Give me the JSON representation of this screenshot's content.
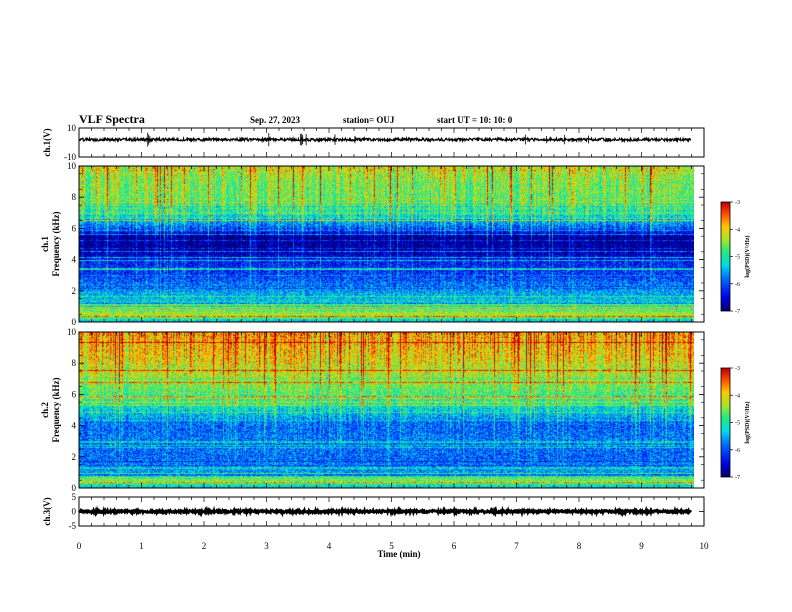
{
  "header": {
    "title": "VLF Spectra",
    "date": "Sep. 27, 2023",
    "station": "station= OUJ",
    "start": "start  UT =   10: 10: 0"
  },
  "chart_data": [
    {
      "type": "line",
      "name": "ch1-waveform",
      "ylabel": "ch.1(V)",
      "ylim": [
        -10,
        10
      ],
      "yticks": [
        "10",
        "-10"
      ],
      "xlim": [
        0,
        10
      ],
      "baseline": 2,
      "amplitude": 1,
      "line_color": "#000000"
    },
    {
      "type": "heatmap",
      "name": "ch1-spectrogram",
      "ylabel_top": "ch.1",
      "ylabel": "Frequency (kHz)",
      "ylim": [
        0,
        10
      ],
      "yticks": [
        "0",
        "2",
        "4",
        "6",
        "8",
        "10"
      ],
      "xlim": [
        0,
        9.85
      ],
      "colorbar": {
        "label": "log(PSD)(V²/Hz)",
        "range": [
          -7,
          -3
        ],
        "ticks": [
          "-3",
          "-4",
          "-5",
          "-6",
          "-7"
        ]
      },
      "profile": [
        [
          0,
          -5.6
        ],
        [
          0.5,
          -4.2
        ],
        [
          1,
          -5.2
        ],
        [
          2,
          -5.6
        ],
        [
          3,
          -6.1
        ],
        [
          4,
          -6.3
        ],
        [
          4.5,
          -6.8
        ],
        [
          5.5,
          -6.9
        ],
        [
          6,
          -6.0
        ],
        [
          7,
          -4.9
        ],
        [
          8,
          -4.6
        ],
        [
          9,
          -4.5
        ],
        [
          10,
          -4.2
        ]
      ]
    },
    {
      "type": "heatmap",
      "name": "ch2-spectrogram",
      "ylabel_top": "ch.2",
      "ylabel": "Frequency (kHz)",
      "ylim": [
        0,
        10
      ],
      "yticks": [
        "0",
        "2",
        "4",
        "6",
        "8",
        "10"
      ],
      "xlim": [
        0,
        9.85
      ],
      "colorbar": {
        "label": "log(PSD)(V²/Hz)",
        "range": [
          -7,
          -3
        ],
        "ticks": [
          "-3",
          "-4",
          "-5",
          "-6",
          "-7"
        ]
      },
      "profile": [
        [
          0,
          -5.4
        ],
        [
          0.5,
          -4.6
        ],
        [
          1,
          -5.6
        ],
        [
          2,
          -5.9
        ],
        [
          3,
          -5.8
        ],
        [
          4,
          -5.9
        ],
        [
          5,
          -5.3
        ],
        [
          6,
          -4.8
        ],
        [
          7,
          -4.4
        ],
        [
          8,
          -4.1
        ],
        [
          9,
          -3.9
        ],
        [
          10,
          -3.7
        ]
      ]
    },
    {
      "type": "line",
      "name": "ch3-waveform",
      "ylabel": "ch.3(V)",
      "ylim": [
        -5,
        5
      ],
      "yticks": [
        "5",
        "0",
        "-5"
      ],
      "xlim": [
        0,
        10
      ],
      "baseline": 0,
      "amplitude": 0.4,
      "line_color": "#000000"
    }
  ],
  "time_axis": {
    "label": "Time (min)",
    "range": [
      0,
      10
    ],
    "ticks": [
      "0",
      "1",
      "2",
      "3",
      "4",
      "5",
      "6",
      "7",
      "8",
      "9",
      "10"
    ]
  }
}
